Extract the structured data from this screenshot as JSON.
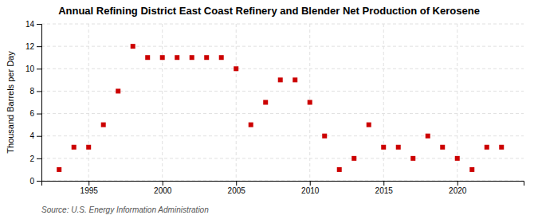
{
  "chart_data": {
    "type": "scatter",
    "title": "Annual Refining District East Coast Refinery and Blender Net Production of Kerosene",
    "y_label": "Thousand Barrels per Day",
    "source": "Source: U.S. Energy Information Administration",
    "x": [
      1993,
      1994,
      1995,
      1996,
      1997,
      1998,
      1999,
      2000,
      2001,
      2002,
      2003,
      2004,
      2005,
      2006,
      2007,
      2008,
      2009,
      2010,
      2011,
      2012,
      2013,
      2014,
      2015,
      2016,
      2017,
      2018,
      2019,
      2020,
      2021,
      2022,
      2023
    ],
    "values": [
      1,
      3,
      3,
      5,
      8,
      12,
      11,
      11,
      11,
      11,
      11,
      11,
      10,
      5,
      7,
      9,
      9,
      7,
      4,
      1,
      2,
      5,
      3,
      3,
      2,
      4,
      3,
      2,
      1,
      3,
      3
    ],
    "color": "#cc0000",
    "marker": "square",
    "grid": true,
    "xlim": [
      1991.8,
      2024.5
    ],
    "xticks": [
      1995,
      2000,
      2005,
      2010,
      2015,
      2020
    ],
    "ylim": [
      0,
      14
    ],
    "yticks": [
      0,
      2,
      4,
      6,
      8,
      10,
      12,
      14
    ]
  }
}
